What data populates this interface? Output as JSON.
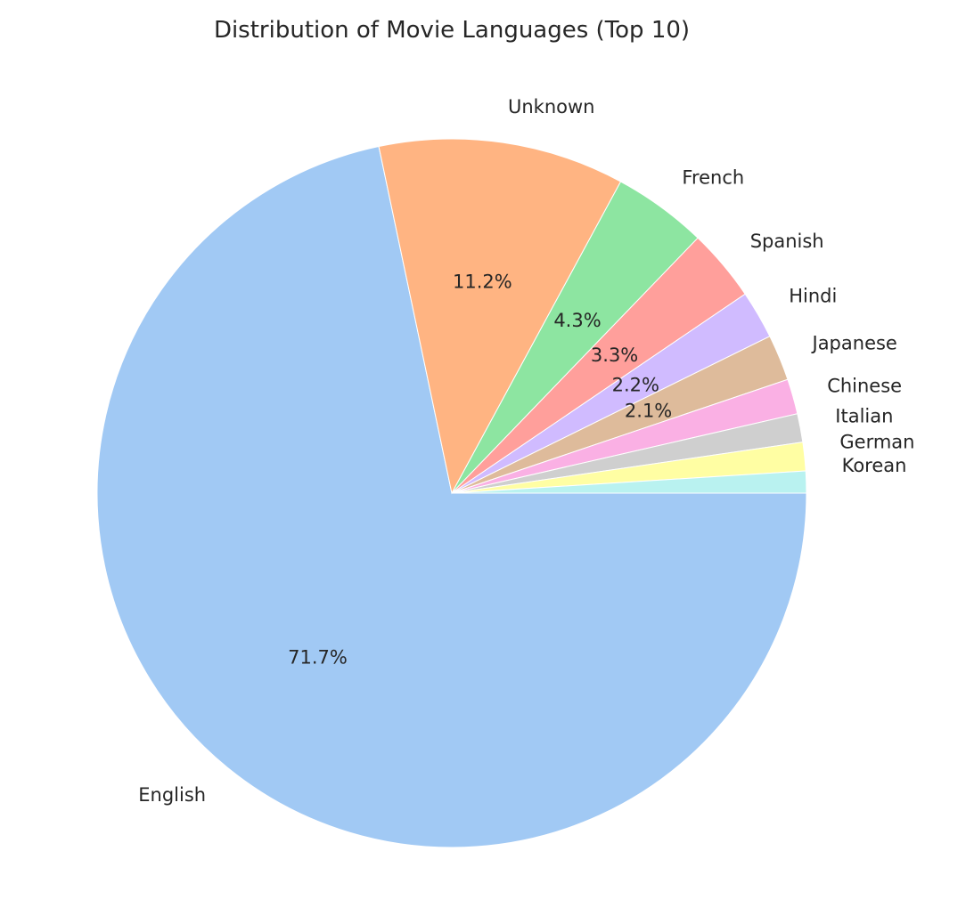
{
  "chart_data": {
    "type": "pie",
    "title": "Distribution of Movie Languages (Top 10)",
    "categories": [
      "English",
      "Unknown",
      "French",
      "Spanish",
      "Hindi",
      "Japanese",
      "Chinese",
      "Italian",
      "German",
      "Korean"
    ],
    "values": [
      71.7,
      11.2,
      4.3,
      3.3,
      2.2,
      2.1,
      1.6,
      1.3,
      1.3,
      1.0
    ],
    "autopct_labels": [
      "71.7%",
      "11.2%",
      "4.3%",
      "3.3%",
      "2.2%",
      "2.1%",
      "",
      "",
      "",
      ""
    ],
    "colors": [
      "#a1c9f4",
      "#ffb482",
      "#8de5a1",
      "#ff9f9b",
      "#d0bbff",
      "#debb9b",
      "#fab0e4",
      "#cfcfcf",
      "#fffea3",
      "#b9f2f0"
    ],
    "start_angle": 0,
    "direction": "clockwise-on-screen",
    "legend": "none"
  }
}
